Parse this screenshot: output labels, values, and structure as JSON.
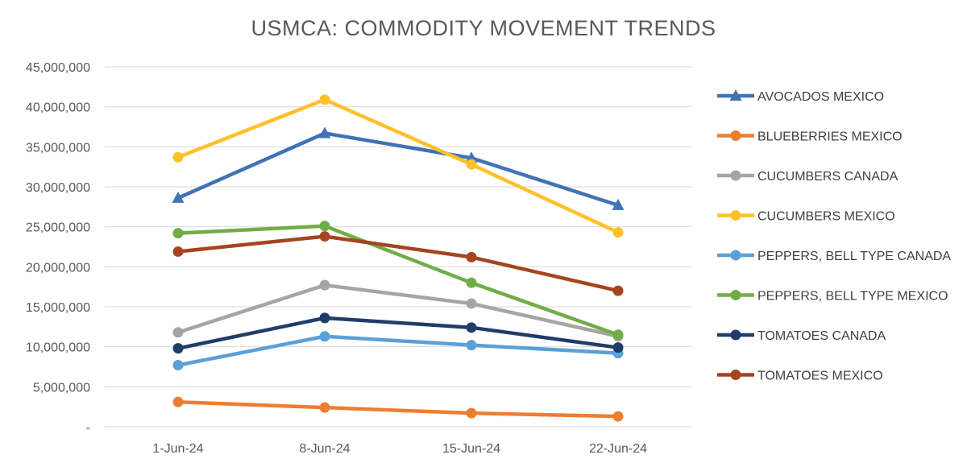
{
  "chart_data": {
    "type": "line",
    "title": "USMCA: COMMODITY MOVEMENT TRENDS",
    "xlabel": "",
    "ylabel": "",
    "categories": [
      "1-Jun-24",
      "8-Jun-24",
      "15-Jun-24",
      "22-Jun-24"
    ],
    "ylim": [
      0,
      45000000
    ],
    "yticks": [
      {
        "value": 0,
        "label": "-"
      },
      {
        "value": 5000000,
        "label": "5,000,000"
      },
      {
        "value": 10000000,
        "label": "10,000,000"
      },
      {
        "value": 15000000,
        "label": "15,000,000"
      },
      {
        "value": 20000000,
        "label": "20,000,000"
      },
      {
        "value": 25000000,
        "label": "25,000,000"
      },
      {
        "value": 30000000,
        "label": "30,000,000"
      },
      {
        "value": 35000000,
        "label": "35,000,000"
      },
      {
        "value": 40000000,
        "label": "40,000,000"
      },
      {
        "value": 45000000,
        "label": "45,000,000"
      }
    ],
    "grid": true,
    "legend_position": "right",
    "series": [
      {
        "name": "AVOCADOS MEXICO",
        "color": "#3f73b5",
        "marker": "triangle",
        "values": [
          28600000,
          36700000,
          33600000,
          27700000
        ]
      },
      {
        "name": "BLUEBERRIES MEXICO",
        "color": "#ed7d31",
        "marker": "circle",
        "values": [
          3100000,
          2400000,
          1700000,
          1300000
        ]
      },
      {
        "name": "CUCUMBERS CANADA",
        "color": "#a5a5a5",
        "marker": "circle",
        "values": [
          11800000,
          17700000,
          15400000,
          11300000
        ]
      },
      {
        "name": "CUCUMBERS MEXICO",
        "color": "#ffc02a",
        "marker": "circle",
        "values": [
          33700000,
          40900000,
          32800000,
          24300000
        ]
      },
      {
        "name": "PEPPERS, BELL TYPE CANADA",
        "color": "#5aa0d6",
        "marker": "circle",
        "values": [
          7700000,
          11300000,
          10200000,
          9200000
        ]
      },
      {
        "name": "PEPPERS, BELL TYPE MEXICO",
        "color": "#70ad47",
        "marker": "circle",
        "values": [
          24200000,
          25100000,
          18000000,
          11500000
        ]
      },
      {
        "name": "TOMATOES CANADA",
        "color": "#1f3d68",
        "marker": "circle",
        "values": [
          9800000,
          13600000,
          12400000,
          9900000
        ]
      },
      {
        "name": "TOMATOES MEXICO",
        "color": "#a5441f",
        "marker": "circle",
        "values": [
          21900000,
          23800000,
          21200000,
          17000000
        ]
      }
    ]
  }
}
